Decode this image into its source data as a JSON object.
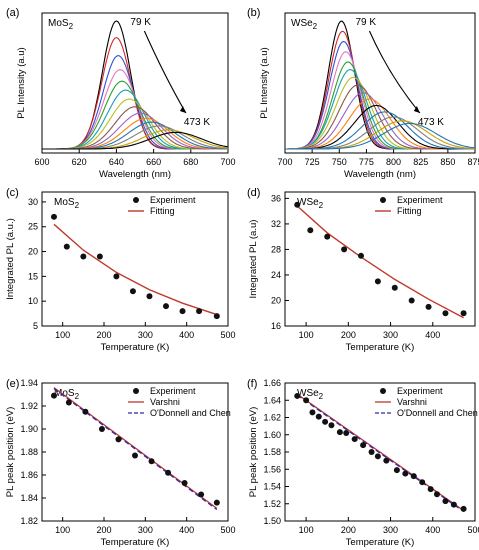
{
  "chart_data": [
    {
      "panel": "(a)",
      "type": "line",
      "sample": "MoS2",
      "xlabel": "Wavelength (nm)",
      "ylabel": "PL Intensity (a.u)",
      "xlim": [
        600,
        700
      ],
      "xticks": [
        600,
        620,
        640,
        660,
        680,
        700
      ],
      "yticks_shown": false,
      "annotations": [
        {
          "text": "79 K"
        },
        {
          "text": "473 K"
        }
      ],
      "series": [
        {
          "peak_nm": 640,
          "amp": 1.0,
          "width": 7.5,
          "color": "#000000"
        },
        {
          "peak_nm": 640,
          "amp": 0.87,
          "width": 7.8,
          "color": "#d62728"
        },
        {
          "peak_nm": 641,
          "amp": 0.73,
          "width": 8.2,
          "color": "#3050d0"
        },
        {
          "peak_nm": 642,
          "amp": 0.62,
          "width": 8.8,
          "color": "#e377c2"
        },
        {
          "peak_nm": 643,
          "amp": 0.53,
          "width": 9.3,
          "color": "#2ca02c"
        },
        {
          "peak_nm": 645,
          "amp": 0.46,
          "width": 9.8,
          "color": "#17a0b0"
        },
        {
          "peak_nm": 647,
          "amp": 0.39,
          "width": 10.3,
          "color": "#bcbd22"
        },
        {
          "peak_nm": 650,
          "amp": 0.33,
          "width": 10.8,
          "color": "#8c564b"
        },
        {
          "peak_nm": 653,
          "amp": 0.28,
          "width": 11.3,
          "color": "#9467bd"
        },
        {
          "peak_nm": 656,
          "amp": 0.24,
          "width": 11.8,
          "color": "#ff7f0e"
        },
        {
          "peak_nm": 659,
          "amp": 0.21,
          "width": 12.3,
          "color": "#1f77b4"
        },
        {
          "peak_nm": 663,
          "amp": 0.18,
          "width": 12.8,
          "color": "#7f7f7f"
        },
        {
          "peak_nm": 668,
          "amp": 0.15,
          "width": 13.3,
          "color": "#c8a000"
        },
        {
          "peak_nm": 672,
          "amp": 0.13,
          "width": 13.8,
          "color": "#000000"
        }
      ]
    },
    {
      "panel": "(b)",
      "type": "line",
      "sample": "WSe2",
      "xlabel": "Wavelength (nm)",
      "ylabel": "PL Intensity (a.u)",
      "xlim": [
        700,
        875
      ],
      "xticks": [
        700,
        725,
        750,
        775,
        800,
        825,
        850,
        875
      ],
      "yticks_shown": false,
      "annotations": [
        {
          "text": "79 K"
        },
        {
          "text": "473 K"
        }
      ],
      "series": [
        {
          "peak_nm": 752,
          "amp": 1.0,
          "width": 12,
          "color": "#000000"
        },
        {
          "peak_nm": 753,
          "amp": 0.92,
          "width": 12.5,
          "color": "#d62728"
        },
        {
          "peak_nm": 754,
          "amp": 0.84,
          "width": 13,
          "color": "#3050d0"
        },
        {
          "peak_nm": 756,
          "amp": 0.76,
          "width": 13.5,
          "color": "#e377c2"
        },
        {
          "peak_nm": 758,
          "amp": 0.68,
          "width": 14,
          "color": "#2ca02c"
        },
        {
          "peak_nm": 760,
          "amp": 0.62,
          "width": 15,
          "color": "#17a0b0"
        },
        {
          "peak_nm": 763,
          "amp": 0.56,
          "width": 16,
          "color": "#bcbd22"
        },
        {
          "peak_nm": 767,
          "amp": 0.5,
          "width": 17,
          "color": "#8c564b"
        },
        {
          "peak_nm": 772,
          "amp": 0.44,
          "width": 18,
          "color": "#9467bd"
        },
        {
          "peak_nm": 778,
          "amp": 0.39,
          "width": 19,
          "color": "#ff7f0e"
        },
        {
          "peak_nm": 784,
          "amp": 0.34,
          "width": 20,
          "color": "#000000"
        },
        {
          "peak_nm": 792,
          "amp": 0.29,
          "width": 21,
          "color": "#1f77b4"
        },
        {
          "peak_nm": 800,
          "amp": 0.25,
          "width": 22,
          "color": "#7f7f7f"
        },
        {
          "peak_nm": 808,
          "amp": 0.22,
          "width": 23,
          "color": "#c8a000"
        },
        {
          "peak_nm": 815,
          "amp": 0.2,
          "width": 24,
          "color": "#1f77b4"
        }
      ]
    },
    {
      "panel": "(c)",
      "type": "scatter",
      "sample": "MoS2",
      "xlabel": "Temperature (K)",
      "ylabel": "Integrated PL (a.u.)",
      "xlim": [
        50,
        500
      ],
      "ylim": [
        5,
        32
      ],
      "xticks": [
        100,
        200,
        300,
        400,
        500
      ],
      "yticks": [
        5,
        10,
        15,
        20,
        25,
        30
      ],
      "legend": [
        "Experiment",
        "Fitting"
      ],
      "x": [
        79,
        110,
        150,
        190,
        230,
        270,
        310,
        350,
        390,
        430,
        473
      ],
      "y": [
        27,
        21,
        19,
        19,
        15,
        12,
        11,
        9,
        8,
        8,
        7
      ],
      "fit": {
        "x": [
          79,
          150,
          230,
          310,
          390,
          473
        ],
        "y": [
          25.5,
          20.3,
          15.8,
          12.3,
          9.6,
          7.3
        ],
        "color": "#c0392b"
      }
    },
    {
      "panel": "(d)",
      "type": "scatter",
      "sample": "WSe2",
      "xlabel": "Temperature (K)",
      "ylabel": "Integrated PL (a.u)",
      "xlim": [
        50,
        500
      ],
      "ylim": [
        16,
        37
      ],
      "xticks": [
        100,
        200,
        300,
        400
      ],
      "yticks": [
        16,
        20,
        24,
        28,
        32,
        36
      ],
      "legend": [
        "Experiment",
        "Fitting"
      ],
      "x": [
        79,
        110,
        150,
        190,
        230,
        270,
        310,
        350,
        390,
        430,
        473
      ],
      "y": [
        35,
        31,
        30,
        28,
        27,
        23,
        22,
        20,
        19,
        18,
        18
      ],
      "fit": {
        "x": [
          79,
          150,
          230,
          310,
          390,
          473
        ],
        "y": [
          34.8,
          30.6,
          26.8,
          23.3,
          20.2,
          17.3
        ],
        "color": "#c0392b"
      }
    },
    {
      "panel": "(e)",
      "type": "scatter",
      "sample": "MoS2",
      "xlabel": "Temperature (K)",
      "ylabel": "PL peak position (eV)",
      "xlim": [
        50,
        500
      ],
      "ylim": [
        1.82,
        1.94
      ],
      "xticks": [
        100,
        200,
        300,
        400,
        500
      ],
      "yticks": [
        1.82,
        1.84,
        1.86,
        1.88,
        1.9,
        1.92,
        1.94
      ],
      "ytick_labels": [
        "1.82",
        "1.84",
        "1.86",
        "1.88",
        "1.90",
        "1.92",
        "1.94"
      ],
      "legend": [
        "Experiment",
        "Varshni",
        "O'Donnell and Chen"
      ],
      "x": [
        79,
        115,
        155,
        195,
        235,
        275,
        315,
        355,
        395,
        435,
        473
      ],
      "y": [
        1.929,
        1.923,
        1.915,
        1.9,
        1.891,
        1.877,
        1.872,
        1.862,
        1.853,
        1.843,
        1.836
      ],
      "fits": [
        {
          "name": "Varshni",
          "x": [
            79,
            473
          ],
          "y": [
            1.936,
            1.831
          ],
          "color": "#c0392b",
          "dash": false
        },
        {
          "name": "O'Donnell and Chen",
          "x": [
            79,
            473
          ],
          "y": [
            1.935,
            1.83
          ],
          "color": "#2a2aaa",
          "dash": true
        }
      ]
    },
    {
      "panel": "(f)",
      "type": "scatter",
      "sample": "WSe2",
      "xlabel": "Temperature (K)",
      "ylabel": "PL peak position (eV)",
      "xlim": [
        50,
        500
      ],
      "ylim": [
        1.5,
        1.66
      ],
      "xticks": [
        100,
        200,
        300,
        400,
        500
      ],
      "yticks": [
        1.5,
        1.52,
        1.54,
        1.56,
        1.58,
        1.6,
        1.62,
        1.64,
        1.66
      ],
      "ytick_labels": [
        "1.50",
        "1.52",
        "1.54",
        "1.56",
        "1.58",
        "1.60",
        "1.62",
        "1.64",
        "1.66"
      ],
      "legend": [
        "Experiment",
        "Varshni",
        "O'Donnell and Chen"
      ],
      "x": [
        79,
        100,
        115,
        130,
        145,
        160,
        180,
        195,
        215,
        235,
        255,
        270,
        290,
        315,
        335,
        355,
        375,
        395,
        410,
        430,
        450,
        473
      ],
      "y": [
        1.645,
        1.64,
        1.626,
        1.621,
        1.615,
        1.611,
        1.603,
        1.602,
        1.595,
        1.588,
        1.58,
        1.575,
        1.57,
        1.559,
        1.555,
        1.552,
        1.545,
        1.537,
        1.531,
        1.523,
        1.519,
        1.514
      ],
      "fits": [
        {
          "name": "Varshni",
          "x": [
            79,
            473
          ],
          "y": [
            1.647,
            1.512
          ],
          "color": "#c0392b",
          "dash": false
        },
        {
          "name": "O'Donnell and Chen",
          "x": [
            79,
            473
          ],
          "y": [
            1.646,
            1.511
          ],
          "color": "#2a2aaa",
          "dash": true
        }
      ]
    }
  ]
}
